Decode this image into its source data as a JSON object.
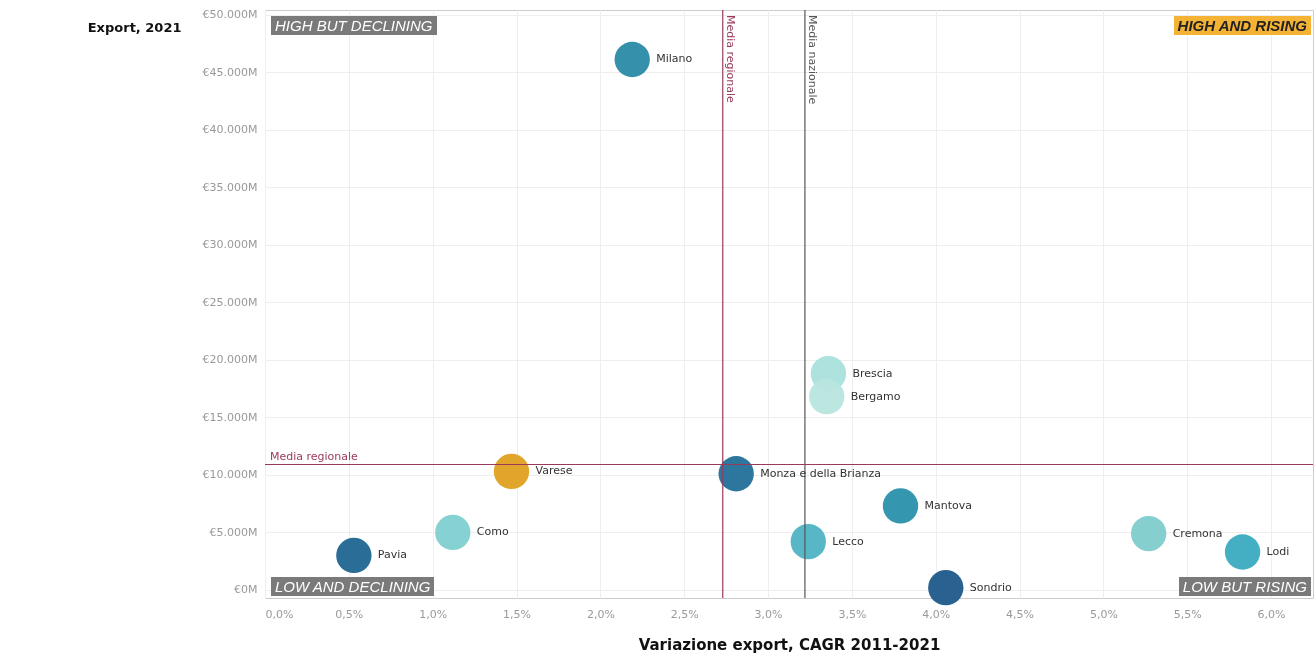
{
  "chart_data": {
    "type": "scatter",
    "xlabel": "Variazione export, CAGR 2011-2021",
    "ylabel": "Export, 2021",
    "xlim": [
      0,
      6.25
    ],
    "ylim": [
      -700,
      50400
    ],
    "xticks": [
      {
        "value": 0,
        "label": "0,0%"
      },
      {
        "value": 0.5,
        "label": "0,5%"
      },
      {
        "value": 1,
        "label": "1,0%"
      },
      {
        "value": 1.5,
        "label": "1,5%"
      },
      {
        "value": 2,
        "label": "2,0%"
      },
      {
        "value": 2.5,
        "label": "2,5%"
      },
      {
        "value": 3,
        "label": "3,0%"
      },
      {
        "value": 3.5,
        "label": "3,5%"
      },
      {
        "value": 4,
        "label": "4,0%"
      },
      {
        "value": 4.5,
        "label": "4,5%"
      },
      {
        "value": 5,
        "label": "5,0%"
      },
      {
        "value": 5.5,
        "label": "5,5%"
      },
      {
        "value": 6,
        "label": "6,0%"
      }
    ],
    "yticks": [
      {
        "value": 0,
        "label": "€0M"
      },
      {
        "value": 5000,
        "label": "€5.000M"
      },
      {
        "value": 10000,
        "label": "€10.000M"
      },
      {
        "value": 15000,
        "label": "€15.000M"
      },
      {
        "value": 20000,
        "label": "€20.000M"
      },
      {
        "value": 25000,
        "label": "€25.000M"
      },
      {
        "value": 30000,
        "label": "€30.000M"
      },
      {
        "value": 35000,
        "label": "€35.000M"
      },
      {
        "value": 40000,
        "label": "€40.000M"
      },
      {
        "value": 45000,
        "label": "€45.000M"
      },
      {
        "value": 50000,
        "label": "€50.000M"
      }
    ],
    "grid": true,
    "marker": "circle",
    "series": [
      {
        "name": "Milano",
        "color": "#2a8aa8",
        "x": [
          2.19
        ],
        "values": [
          46100
        ]
      },
      {
        "name": "Varese",
        "color": "#e0a020",
        "x": [
          1.47
        ],
        "values": [
          10300
        ]
      },
      {
        "name": "Como",
        "color": "#7fcfcf",
        "x": [
          1.12
        ],
        "values": [
          5000
        ]
      },
      {
        "name": "Pavia",
        "color": "#1f6590",
        "x": [
          0.53
        ],
        "values": [
          3000
        ]
      },
      {
        "name": "Monza e della Brianza",
        "color": "#22709a",
        "x": [
          2.81
        ],
        "values": [
          10100
        ]
      },
      {
        "name": "Lecco",
        "color": "#4fb3c4",
        "x": [
          3.24
        ],
        "values": [
          4200
        ]
      },
      {
        "name": "Brescia",
        "color": "#a9e0dc",
        "x": [
          3.36
        ],
        "values": [
          18800
        ]
      },
      {
        "name": "Bergamo",
        "color": "#b8e6de",
        "x": [
          3.35
        ],
        "values": [
          16800
        ]
      },
      {
        "name": "Mantova",
        "color": "#2a90ac",
        "x": [
          3.79
        ],
        "values": [
          7300
        ]
      },
      {
        "name": "Sondrio",
        "color": "#1d5a8a",
        "x": [
          4.06
        ],
        "values": [
          200
        ]
      },
      {
        "name": "Cremona",
        "color": "#80cccc",
        "x": [
          5.27
        ],
        "values": [
          4900
        ]
      },
      {
        "name": "Lodi",
        "color": "#3aaac0",
        "x": [
          5.83
        ],
        "values": [
          3300
        ]
      }
    ],
    "ref_lines": [
      {
        "axis": "x",
        "value": 2.73,
        "label": "Media regionale",
        "color": "#9a3a5a"
      },
      {
        "axis": "x",
        "value": 3.22,
        "label": "Media nazionale",
        "color": "#555555"
      },
      {
        "axis": "y",
        "value": 10900,
        "label": "Media regionale",
        "color": "#9a3a5a"
      }
    ],
    "annotations": [
      "HIGH BUT DECLINING",
      "HIGH AND RISING",
      "LOW AND DECLINING",
      "LOW BUT RISING"
    ]
  }
}
